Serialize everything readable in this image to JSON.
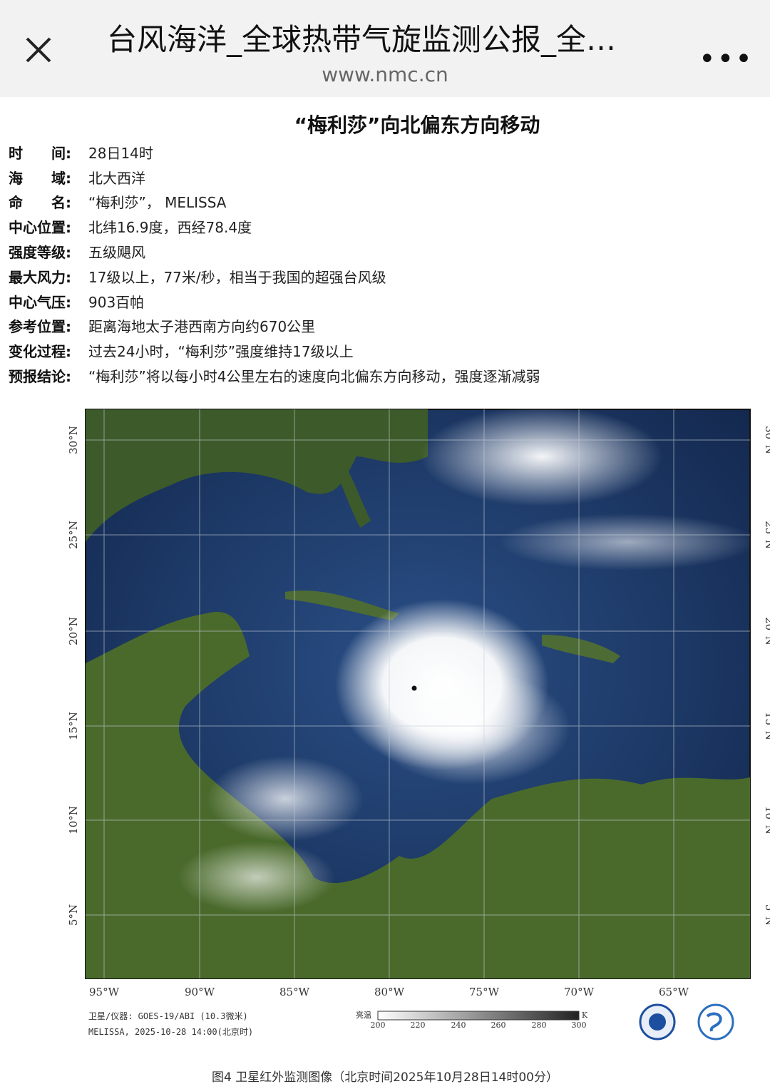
{
  "browser": {
    "title": "台风海洋_全球热带气旋监测公报_全…",
    "url": "www.nmc.cn",
    "close_icon": "close-icon",
    "more_icon": "more-icon"
  },
  "article": {
    "headline": "“梅利莎”向北偏东方向移动",
    "fields": [
      {
        "label": "时　　间:",
        "value": "28日14时"
      },
      {
        "label": "海　　域:",
        "value": "北大西洋"
      },
      {
        "label": "命　　名:",
        "value": "“梅利莎”， MELISSA"
      },
      {
        "label": "中心位置:",
        "value": "北纬16.9度，西经78.4度"
      },
      {
        "label": "强度等级:",
        "value": "五级飓风"
      },
      {
        "label": "最大风力:",
        "value": "17级以上，77米/秒，相当于我国的超强台风级"
      },
      {
        "label": "中心气压:",
        "value": "903百帕"
      },
      {
        "label": "参考位置:",
        "value": "距离海地太子港西南方向约670公里"
      },
      {
        "label": "变化过程:",
        "value": "过去24小时，“梅利莎”强度维持17级以上"
      },
      {
        "label": "预报结论:",
        "value": "“梅利莎”将以每小时4公里左右的速度向北偏东方向移动，强度逐渐减弱"
      }
    ]
  },
  "satellite": {
    "lat_labels": [
      "30°N",
      "25°N",
      "20°N",
      "15°N",
      "10°N",
      "5°N"
    ],
    "lon_labels": [
      "95°W",
      "90°W",
      "85°W",
      "80°W",
      "75°W",
      "70°W",
      "65°W"
    ],
    "instrument": "卫星/仪器: GOES-19/ABI (10.3微米)",
    "stamp": "MELISSA, 2025-10-28 14:00(北京时)",
    "scale_label": "亮温",
    "scale_unit": "K",
    "scale_ticks": [
      "200",
      "220",
      "240",
      "260",
      "280",
      "300"
    ],
    "caption": "图4 卫星红外监测图像（北京时间2025年10月28日14时00分）"
  }
}
